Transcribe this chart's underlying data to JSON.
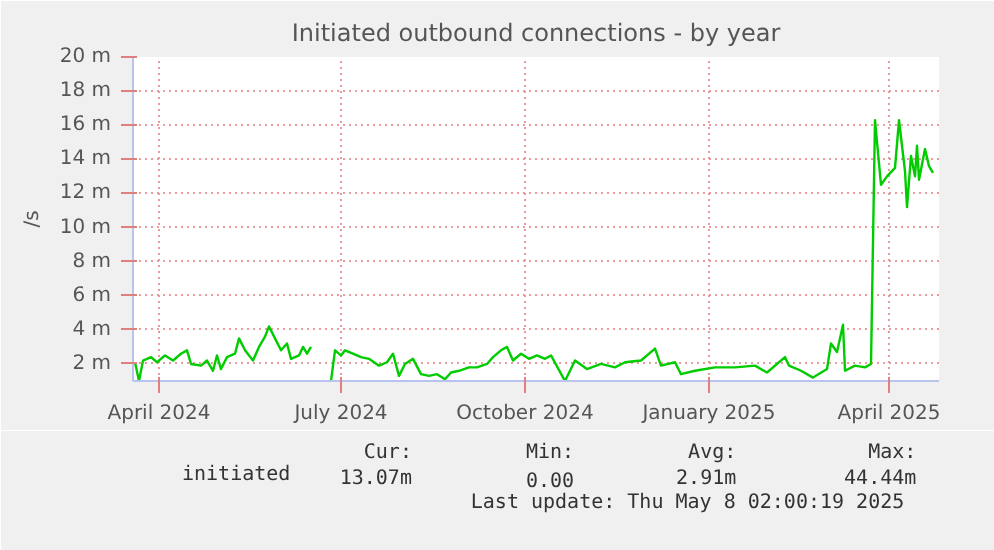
{
  "chart_data": {
    "type": "line",
    "title": "Initiated outbound connections - by year",
    "ylabel": "/s",
    "xlim": [
      "2024-04-02",
      "2025-05-10"
    ],
    "ylim": [
      1,
      20
    ],
    "xticks": [
      {
        "value": "2024-04-15",
        "label": "April 2024"
      },
      {
        "value": "2024-07-15",
        "label": "July 2024"
      },
      {
        "value": "2024-10-15",
        "label": "October 2024"
      },
      {
        "value": "2025-01-15",
        "label": "January 2025"
      },
      {
        "value": "2025-04-15",
        "label": "April 2025"
      }
    ],
    "yticks": [
      {
        "value": 2,
        "label": "2 m"
      },
      {
        "value": 4,
        "label": "4 m"
      },
      {
        "value": 6,
        "label": "6 m"
      },
      {
        "value": 8,
        "label": "8 m"
      },
      {
        "value": 10,
        "label": "10 m"
      },
      {
        "value": 12,
        "label": "12 m"
      },
      {
        "value": 14,
        "label": "14 m"
      },
      {
        "value": 16,
        "label": "16 m"
      },
      {
        "value": 18,
        "label": "18 m"
      },
      {
        "value": 20,
        "label": "20 m"
      }
    ],
    "grid": true,
    "legend": "bottom",
    "line_style": "solid",
    "annotations": [
      "Cur:",
      "Min:",
      "Avg:",
      "Max:",
      "13.07m",
      "0.00",
      "2.91m",
      "44.44m",
      "Last update: Thu May  8 02:00:19 2025"
    ],
    "series": [
      {
        "name": "initiated",
        "color": "#00cc00",
        "x": [
          "2024-04-03",
          "2024-04-05",
          "2024-04-07",
          "2024-04-11",
          "2024-04-14",
          "2024-04-18",
          "2024-04-22",
          "2024-04-26",
          "2024-04-29",
          "2024-05-01",
          "2024-05-06",
          "2024-05-09",
          "2024-05-12",
          "2024-05-14",
          "2024-05-16",
          "2024-05-19",
          "2024-05-23",
          "2024-05-25",
          "2024-05-28",
          "2024-06-01",
          "2024-06-04",
          "2024-06-07",
          "2024-06-09",
          "2024-06-12",
          "2024-06-15",
          "2024-06-18",
          "2024-06-20",
          "2024-06-24",
          "2024-06-26",
          "2024-06-28",
          "2024-06-30",
          "2024-07-05",
          "2024-07-10",
          "2024-07-12",
          "2024-07-15",
          "2024-07-17",
          "2024-07-21",
          "2024-07-25",
          "2024-07-29",
          "2024-08-03",
          "2024-08-07",
          "2024-08-10",
          "2024-08-13",
          "2024-08-16",
          "2024-08-20",
          "2024-08-24",
          "2024-08-28",
          "2024-09-01",
          "2024-09-05",
          "2024-09-08",
          "2024-09-12",
          "2024-09-17",
          "2024-09-21",
          "2024-09-26",
          "2024-09-29",
          "2024-10-03",
          "2024-10-06",
          "2024-10-09",
          "2024-10-13",
          "2024-10-17",
          "2024-10-21",
          "2024-10-25",
          "2024-10-28",
          "2024-11-04",
          "2024-11-09",
          "2024-11-15",
          "2024-11-22",
          "2024-11-29",
          "2024-12-04",
          "2024-12-12",
          "2024-12-19",
          "2024-12-22",
          "2024-12-29",
          "2025-01-01",
          "2025-01-08",
          "2025-01-18",
          "2025-01-28",
          "2025-02-07",
          "2025-02-13",
          "2025-02-22",
          "2025-02-24",
          "2025-03-02",
          "2025-03-08",
          "2025-03-15",
          "2025-03-17",
          "2025-03-20",
          "2025-03-23",
          "2025-03-24",
          "2025-03-29",
          "2025-04-03",
          "2025-04-06",
          "2025-04-08",
          "2025-04-11",
          "2025-04-14",
          "2025-04-18",
          "2025-04-20",
          "2025-04-23",
          "2025-04-24",
          "2025-04-26",
          "2025-04-28",
          "2025-04-29",
          "2025-04-30",
          "2025-05-03",
          "2025-05-05",
          "2025-05-07"
        ],
        "values": [
          2.1,
          1.0,
          2.2,
          2.4,
          2.1,
          2.5,
          2.2,
          2.6,
          2.8,
          2.0,
          1.9,
          2.2,
          1.6,
          2.5,
          1.7,
          2.4,
          2.6,
          3.5,
          2.8,
          2.2,
          3.0,
          3.6,
          4.2,
          3.5,
          2.8,
          3.2,
          2.3,
          2.5,
          3.0,
          2.6,
          3.0,
          null,
          1.0,
          2.8,
          2.5,
          2.8,
          2.6,
          2.4,
          2.3,
          1.9,
          2.1,
          2.6,
          1.3,
          2.0,
          2.3,
          1.4,
          1.3,
          1.4,
          1.1,
          1.5,
          1.6,
          1.8,
          1.8,
          2.0,
          2.4,
          2.8,
          3.0,
          2.2,
          2.6,
          2.3,
          2.5,
          2.3,
          2.5,
          1.0,
          2.2,
          1.7,
          2.0,
          1.8,
          2.1,
          2.2,
          2.9,
          1.9,
          2.1,
          1.4,
          1.6,
          1.8,
          1.8,
          1.9,
          1.5,
          2.4,
          1.9,
          1.6,
          1.2,
          1.7,
          3.2,
          2.7,
          4.3,
          1.6,
          1.9,
          1.8,
          2.0,
          16.3,
          12.5,
          13.0,
          13.5,
          16.3,
          13.3,
          11.2,
          14.2,
          13.0,
          14.8,
          12.8,
          14.6,
          13.6,
          13.2
        ]
      }
    ]
  }
}
